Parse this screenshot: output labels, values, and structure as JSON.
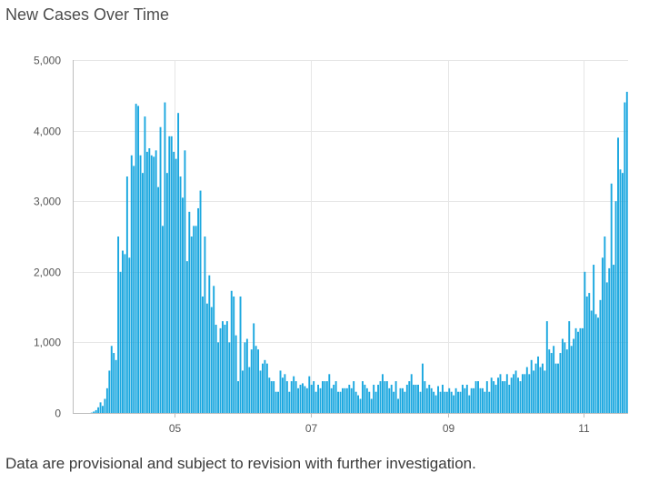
{
  "header": {
    "title": "New Cases Over Time"
  },
  "footer": {
    "note": "Data are provisional and subject to revision with further investigation."
  },
  "colors": {
    "bar": "#1aa7df",
    "grid": "#e6e6e6",
    "axis": "#bdbdbd"
  },
  "chart_data": {
    "type": "bar",
    "title": "New Cases Over Time",
    "xlabel": "",
    "ylabel": "",
    "ylim": [
      0,
      5000
    ],
    "yticks": [
      {
        "value": 0,
        "label": "0"
      },
      {
        "value": 1000,
        "label": "1,000"
      },
      {
        "value": 2000,
        "label": "2,000"
      },
      {
        "value": 3000,
        "label": "3,000"
      },
      {
        "value": 4000,
        "label": "4,000"
      },
      {
        "value": 5000,
        "label": "5,000"
      }
    ],
    "xticks": [
      {
        "label": "05",
        "index": 46
      },
      {
        "label": "07",
        "index": 107
      },
      {
        "label": "09",
        "index": 169
      },
      {
        "label": "11",
        "index": 230
      }
    ],
    "grid": true,
    "legend": "none",
    "values": [
      0,
      0,
      0,
      0,
      0,
      0,
      0,
      0,
      5,
      20,
      40,
      80,
      150,
      100,
      200,
      350,
      600,
      950,
      850,
      750,
      2500,
      2000,
      2300,
      2250,
      3350,
      2200,
      3650,
      3500,
      4380,
      4350,
      3650,
      3400,
      4200,
      3700,
      3750,
      3650,
      3630,
      3720,
      3200,
      4050,
      2650,
      4400,
      3400,
      3920,
      3920,
      3700,
      3600,
      4250,
      3350,
      3050,
      3720,
      2150,
      2850,
      2500,
      2650,
      2650,
      2900,
      3150,
      1650,
      2500,
      1550,
      1950,
      1500,
      1800,
      1250,
      1000,
      1200,
      1300,
      1250,
      1300,
      1000,
      1730,
      1650,
      1100,
      450,
      1650,
      600,
      1000,
      1050,
      650,
      900,
      1270,
      950,
      900,
      600,
      700,
      750,
      700,
      500,
      450,
      450,
      300,
      300,
      600,
      500,
      550,
      450,
      300,
      450,
      520,
      450,
      350,
      400,
      420,
      380,
      350,
      520,
      400,
      450,
      300,
      400,
      350,
      450,
      450,
      450,
      550,
      350,
      400,
      450,
      300,
      300,
      350,
      350,
      350,
      400,
      350,
      450,
      300,
      250,
      200,
      450,
      400,
      350,
      300,
      200,
      400,
      300,
      400,
      450,
      550,
      450,
      450,
      350,
      400,
      300,
      450,
      200,
      350,
      350,
      300,
      400,
      450,
      550,
      400,
      400,
      400,
      300,
      700,
      450,
      350,
      400,
      350,
      300,
      250,
      380,
      300,
      400,
      300,
      300,
      350,
      300,
      250,
      350,
      300,
      300,
      400,
      350,
      400,
      250,
      350,
      350,
      450,
      450,
      350,
      350,
      300,
      450,
      300,
      500,
      450,
      400,
      500,
      550,
      450,
      450,
      550,
      400,
      500,
      550,
      600,
      500,
      450,
      550,
      550,
      650,
      550,
      750,
      600,
      700,
      800,
      650,
      700,
      600,
      1300,
      900,
      850,
      950,
      700,
      700,
      850,
      1050,
      1000,
      900,
      1300,
      950,
      1050,
      1200,
      1150,
      1200,
      1200,
      2000,
      1650,
      1700,
      1450,
      2100,
      1400,
      1350,
      1600,
      2200,
      2500,
      1850,
      2050,
      3250,
      2100,
      3000,
      3900,
      3450,
      3400,
      4400,
      4550
    ]
  }
}
